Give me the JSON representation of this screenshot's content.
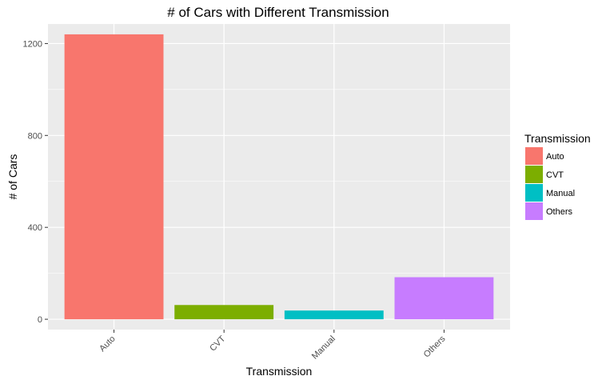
{
  "chart_data": {
    "type": "bar",
    "title": "# of Cars with Different Transmission",
    "xlabel": "Transmission",
    "ylabel": "# of Cars",
    "categories": [
      "Auto",
      "CVT",
      "Manual",
      "Others"
    ],
    "values": [
      1240,
      62,
      38,
      183
    ],
    "ylim": [
      -45,
      1285
    ],
    "yticks": [
      0,
      400,
      800,
      1200
    ],
    "grid": true,
    "legend": {
      "title": "Transmission",
      "placement": "right",
      "entries": [
        "Auto",
        "CVT",
        "Manual",
        "Others"
      ]
    },
    "colors": [
      "#F8766D",
      "#7CAE00",
      "#00BFC4",
      "#C77CFF"
    ],
    "panel_background": "#EBEBEB",
    "grid_color": "#FFFFFF"
  }
}
